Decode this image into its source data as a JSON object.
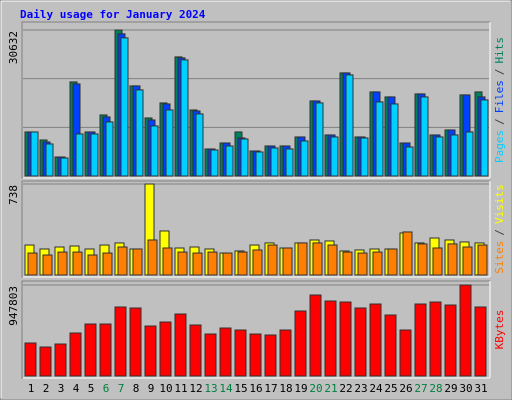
{
  "chart_data": {
    "type": "bar",
    "title": "Daily usage for January 2024",
    "separator": "/",
    "categories": [
      "1",
      "2",
      "3",
      "4",
      "5",
      "6",
      "7",
      "8",
      "9",
      "10",
      "11",
      "12",
      "13",
      "14",
      "15",
      "16",
      "17",
      "18",
      "19",
      "20",
      "21",
      "22",
      "23",
      "24",
      "25",
      "26",
      "27",
      "28",
      "29",
      "30",
      "31"
    ],
    "label_colors": [
      "#000000",
      "#000000",
      "#000000",
      "#000000",
      "#000000",
      "#008040",
      "#008040",
      "#000000",
      "#000000",
      "#000000",
      "#000000",
      "#000000",
      "#008040",
      "#008040",
      "#000000",
      "#000000",
      "#000000",
      "#000000",
      "#000000",
      "#008040",
      "#008040",
      "#000000",
      "#000000",
      "#000000",
      "#000000",
      "#000000",
      "#008040",
      "#008040",
      "#000000",
      "#000000",
      "#000000"
    ],
    "panels": [
      {
        "ylim": [
          0,
          30632
        ],
        "yticks": [
          30632
        ],
        "ygrid": [
          10211,
          20421
        ],
        "series": [
          {
            "name": "Hits",
            "color": "#00805c",
            "values": [
              9240,
              7560,
              3990,
              19740,
              9240,
              12810,
              30632,
              18900,
              12180,
              15330,
              24990,
              13860,
              5670,
              6930,
              9240,
              5250,
              6300,
              6300,
              8190,
              15750,
              8610,
              21630,
              8190,
              17640,
              16590,
              6930,
              17220,
              8610,
              9660,
              17010,
              17640
            ]
          },
          {
            "name": "Files",
            "color": "#0040ff",
            "values": [
              9240,
              7140,
              3990,
              19320,
              9240,
              12390,
              29820,
              18900,
              11760,
              15120,
              24780,
              13650,
              5670,
              6930,
              7980,
              5250,
              6300,
              6300,
              8190,
              15750,
              8610,
              21630,
              8190,
              17640,
              16590,
              6930,
              17220,
              8610,
              9660,
              17010,
              16590
            ]
          },
          {
            "name": "Pages",
            "color": "#00d0ff",
            "values": [
              9240,
              6720,
              3780,
              8820,
              8820,
              11340,
              28980,
              18060,
              10500,
              13860,
              24360,
              13020,
              5460,
              6300,
              7770,
              5040,
              5880,
              5670,
              7350,
              15330,
              8190,
              21210,
              7980,
              15540,
              15120,
              6090,
              16590,
              8190,
              8610,
              9240,
              15960
            ]
          }
        ]
      },
      {
        "ylim": [
          0,
          738
        ],
        "yticks": [
          738
        ],
        "series": [
          {
            "name": "Visits",
            "color": "#ffff00",
            "values": [
              243,
              211,
              227,
              235,
              211,
              243,
              260,
              211,
              738,
              357,
              219,
              227,
              211,
              178,
              195,
              243,
              260,
              219,
              260,
              284,
              276,
              195,
              203,
              211,
              211,
              341,
              260,
              300,
              284,
              268,
              260
            ]
          },
          {
            "name": "Sites",
            "color": "#ff8000",
            "values": [
              178,
              162,
              186,
              186,
              162,
              178,
              227,
              211,
              284,
              219,
              186,
              178,
              186,
              178,
              186,
              203,
              243,
              219,
              260,
              260,
              243,
              186,
              178,
              186,
              211,
              349,
              252,
              219,
              252,
              227,
              243
            ]
          }
        ]
      },
      {
        "ylim": [
          0,
          947803
        ],
        "yticks": [
          947803
        ],
        "series": [
          {
            "name": "KBytes",
            "color": "#ff0000",
            "values": [
              343700,
              302035,
              333280,
              447845,
              541580,
              541580,
              718635,
              708220,
              520750,
              562410,
              645730,
              531165,
              437430,
              499920,
              479090,
              437430,
              427015,
              479090,
              676975,
              843615,
              781125,
              770710,
              708220,
              749880,
              635315,
              479090,
              749880,
              770710,
              739465,
              947803,
              718635
            ]
          }
        ]
      }
    ]
  }
}
